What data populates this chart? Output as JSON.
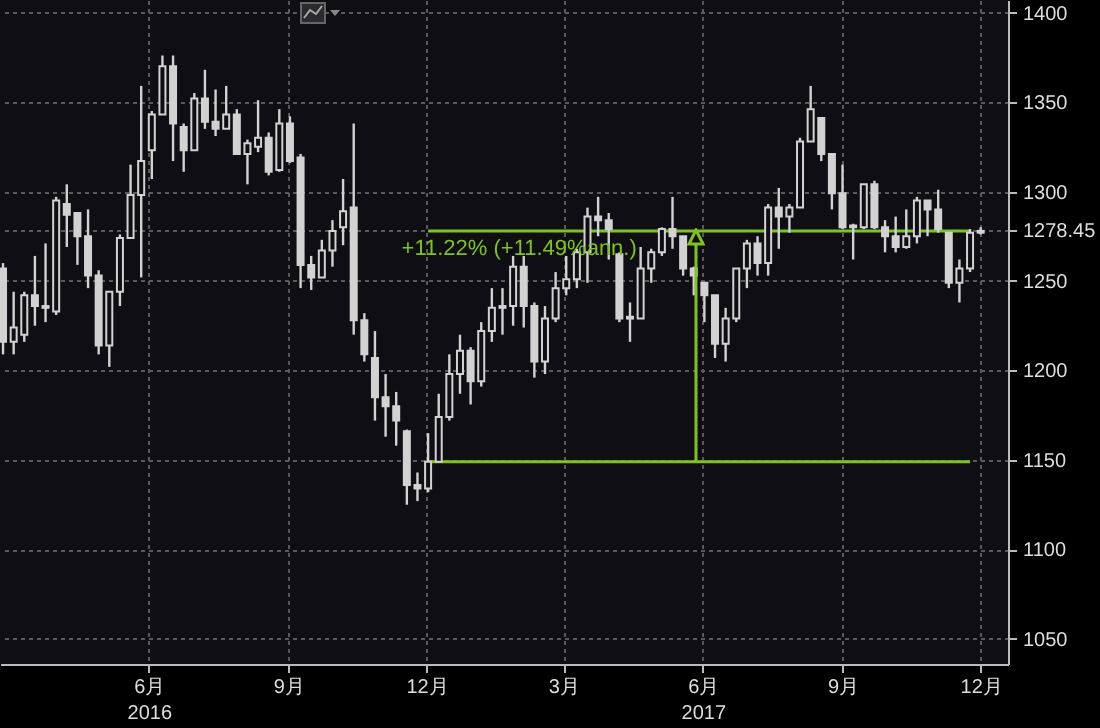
{
  "chart_data": {
    "type": "candlestick",
    "color": "#d2d2d2",
    "x": [
      "2016-02-26",
      "2016-03-04",
      "2016-03-11",
      "2016-03-18",
      "2016-03-25",
      "2016-04-01",
      "2016-04-08",
      "2016-04-15",
      "2016-04-22",
      "2016-04-29",
      "2016-05-06",
      "2016-05-13",
      "2016-05-20",
      "2016-05-27",
      "2016-06-03",
      "2016-06-10",
      "2016-06-17",
      "2016-06-24",
      "2016-07-01",
      "2016-07-08",
      "2016-07-15",
      "2016-07-22",
      "2016-07-29",
      "2016-08-05",
      "2016-08-12",
      "2016-08-19",
      "2016-08-26",
      "2016-09-02",
      "2016-09-09",
      "2016-09-16",
      "2016-09-23",
      "2016-09-30",
      "2016-10-07",
      "2016-10-14",
      "2016-10-21",
      "2016-10-28",
      "2016-11-04",
      "2016-11-11",
      "2016-11-18",
      "2016-11-25",
      "2016-12-02",
      "2016-12-09",
      "2016-12-16",
      "2016-12-23",
      "2016-12-30",
      "2017-01-06",
      "2017-01-13",
      "2017-01-20",
      "2017-01-27",
      "2017-02-03",
      "2017-02-10",
      "2017-02-17",
      "2017-02-24",
      "2017-03-03",
      "2017-03-10",
      "2017-03-17",
      "2017-03-24",
      "2017-03-31",
      "2017-04-07",
      "2017-04-14",
      "2017-04-21",
      "2017-04-28",
      "2017-05-05",
      "2017-05-12",
      "2017-05-19",
      "2017-05-26",
      "2017-06-02",
      "2017-06-09",
      "2017-06-16",
      "2017-06-23",
      "2017-06-30",
      "2017-07-07",
      "2017-07-14",
      "2017-07-21",
      "2017-07-28",
      "2017-08-04",
      "2017-08-11",
      "2017-08-18",
      "2017-08-25",
      "2017-09-01",
      "2017-09-08",
      "2017-09-15",
      "2017-09-22",
      "2017-09-29",
      "2017-10-06",
      "2017-10-13",
      "2017-10-20",
      "2017-10-27",
      "2017-11-03",
      "2017-11-10",
      "2017-11-17",
      "2017-11-24",
      "2017-12-01"
    ],
    "ohlc": [
      [
        1257,
        1260,
        1209,
        1216
      ],
      [
        1216,
        1244,
        1209,
        1224
      ],
      [
        1220,
        1244,
        1216,
        1242
      ],
      [
        1242,
        1264,
        1225,
        1236
      ],
      [
        1236,
        1271,
        1227,
        1235
      ],
      [
        1233,
        1297,
        1231,
        1295
      ],
      [
        1293,
        1304,
        1269,
        1287
      ],
      [
        1288,
        1288,
        1259,
        1275
      ],
      [
        1275,
        1290,
        1246,
        1253
      ],
      [
        1253,
        1256,
        1209,
        1214
      ],
      [
        1214,
        1244,
        1202,
        1244
      ],
      [
        1244,
        1276,
        1236,
        1274
      ],
      [
        1274,
        1315,
        1274,
        1298
      ],
      [
        1298,
        1359,
        1252,
        1317
      ],
      [
        1323,
        1345,
        1307,
        1343
      ],
      [
        1343,
        1376,
        1343,
        1370
      ],
      [
        1370,
        1376,
        1317,
        1338
      ],
      [
        1336,
        1338,
        1311,
        1323
      ],
      [
        1323,
        1355,
        1323,
        1352
      ],
      [
        1352,
        1368,
        1335,
        1339
      ],
      [
        1339,
        1357,
        1331,
        1335
      ],
      [
        1335,
        1359,
        1335,
        1343
      ],
      [
        1343,
        1346,
        1321,
        1321
      ],
      [
        1321,
        1329,
        1304,
        1327
      ],
      [
        1325,
        1351,
        1322,
        1330
      ],
      [
        1330,
        1333,
        1309,
        1311
      ],
      [
        1312,
        1346,
        1311,
        1338
      ],
      [
        1338,
        1342,
        1316,
        1317
      ],
      [
        1319,
        1321,
        1246,
        1259
      ],
      [
        1259,
        1264,
        1245,
        1252
      ],
      [
        1252,
        1273,
        1252,
        1267
      ],
      [
        1267,
        1284,
        1258,
        1278
      ],
      [
        1280,
        1307,
        1270,
        1289
      ],
      [
        1291,
        1338,
        1220,
        1228
      ],
      [
        1228,
        1232,
        1205,
        1209
      ],
      [
        1207,
        1222,
        1172,
        1185
      ],
      [
        1185,
        1198,
        1163,
        1180
      ],
      [
        1180,
        1188,
        1158,
        1172
      ],
      [
        1166,
        1167,
        1125,
        1136
      ],
      [
        1136,
        1143,
        1127,
        1134
      ],
      [
        1134,
        1165,
        1132,
        1149
      ],
      [
        1149,
        1187,
        1149,
        1174
      ],
      [
        1174,
        1209,
        1172,
        1198
      ],
      [
        1198,
        1220,
        1187,
        1211
      ],
      [
        1211,
        1213,
        1181,
        1194
      ],
      [
        1194,
        1227,
        1191,
        1222
      ],
      [
        1222,
        1246,
        1216,
        1235
      ],
      [
        1235,
        1246,
        1220,
        1236
      ],
      [
        1236,
        1264,
        1225,
        1258
      ],
      [
        1258,
        1264,
        1224,
        1236
      ],
      [
        1236,
        1238,
        1196,
        1205
      ],
      [
        1205,
        1236,
        1198,
        1229
      ],
      [
        1229,
        1255,
        1227,
        1246
      ],
      [
        1246,
        1264,
        1242,
        1251
      ],
      [
        1251,
        1268,
        1246,
        1266
      ],
      [
        1266,
        1291,
        1249,
        1286
      ],
      [
        1286,
        1297,
        1275,
        1284
      ],
      [
        1284,
        1288,
        1262,
        1279
      ],
      [
        1265,
        1266,
        1227,
        1229
      ],
      [
        1229,
        1238,
        1216,
        1230
      ],
      [
        1229,
        1269,
        1229,
        1257
      ],
      [
        1257,
        1268,
        1249,
        1266
      ],
      [
        1266,
        1280,
        1264,
        1279
      ],
      [
        1279,
        1297,
        1268,
        1275
      ],
      [
        1275,
        1275,
        1253,
        1257
      ],
      [
        1257,
        1258,
        1242,
        1253
      ],
      [
        1249,
        1249,
        1227,
        1242
      ],
      [
        1242,
        1242,
        1207,
        1215
      ],
      [
        1215,
        1235,
        1205,
        1229
      ],
      [
        1229,
        1257,
        1227,
        1257
      ],
      [
        1257,
        1273,
        1246,
        1271
      ],
      [
        1271,
        1275,
        1253,
        1260
      ],
      [
        1260,
        1293,
        1253,
        1291
      ],
      [
        1291,
        1302,
        1268,
        1286
      ],
      [
        1286,
        1293,
        1277,
        1291
      ],
      [
        1291,
        1330,
        1291,
        1328
      ],
      [
        1328,
        1359,
        1328,
        1346
      ],
      [
        1341,
        1341,
        1317,
        1321
      ],
      [
        1321,
        1321,
        1290,
        1299
      ],
      [
        1299,
        1315,
        1279,
        1280
      ],
      [
        1280,
        1282,
        1262,
        1281
      ],
      [
        1280,
        1304,
        1279,
        1304
      ],
      [
        1304,
        1306,
        1279,
        1280
      ],
      [
        1280,
        1284,
        1266,
        1275
      ],
      [
        1275,
        1286,
        1266,
        1269
      ],
      [
        1269,
        1290,
        1268,
        1275
      ],
      [
        1275,
        1297,
        1271,
        1295
      ],
      [
        1295,
        1295,
        1275,
        1290
      ],
      [
        1290,
        1301,
        1277,
        1279
      ],
      [
        1277,
        1277,
        1246,
        1249
      ],
      [
        1249,
        1262,
        1238,
        1257
      ],
      [
        1257,
        1279,
        1255,
        1277
      ],
      [
        1277,
        1280,
        1276,
        1278
      ]
    ],
    "series": [
      {
        "type": "line",
        "color": "#7fc31c",
        "x": [
          "2016-12-02",
          "2017-11-24"
        ],
        "values": [
          1278,
          1278
        ]
      },
      {
        "type": "line",
        "color": "#7fc31c",
        "x": [
          "2016-12-02",
          "2017-11-24"
        ],
        "values": [
          1149,
          1149
        ]
      }
    ],
    "annotations": [
      {
        "text": "+11.22% (+11.49%ann.)",
        "x": "2017-05-28",
        "y": 1278
      }
    ],
    "xlim": [
      "2016-02-24",
      "2017-12-19"
    ],
    "xticks": [
      {
        "value": "2016-06-01",
        "label": "6月\n2016"
      },
      {
        "value": "2016-09-01",
        "label": "9月"
      },
      {
        "value": "2016-12-01",
        "label": "12月"
      },
      {
        "value": "2017-03-01",
        "label": "3月"
      },
      {
        "value": "2017-06-01",
        "label": "6月\n2017"
      },
      {
        "value": "2017-09-01",
        "label": "9月"
      },
      {
        "value": "2017-12-01",
        "label": "12月"
      }
    ],
    "ylim": [
      1036,
      1407
    ],
    "yticks": [
      1050,
      1100,
      1150,
      1200,
      1250,
      1278.45,
      1300,
      1350,
      1400
    ],
    "grid": true
  }
}
